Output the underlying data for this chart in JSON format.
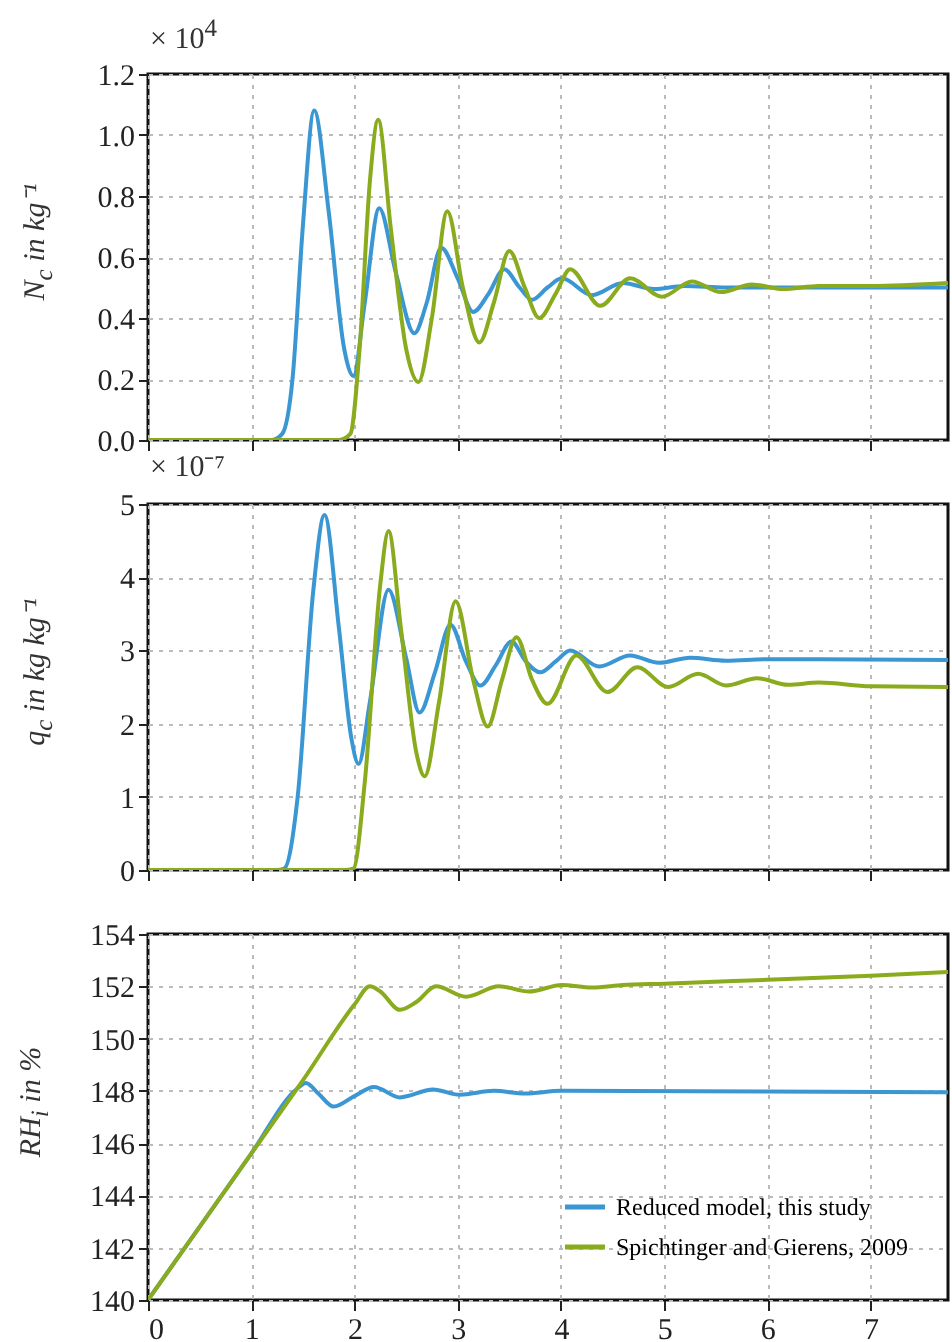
{
  "chart_data": [
    {
      "type": "line",
      "ylabel": "N$_{c}$ in kg⁻¹",
      "annotations": [
        "× 10$^{4}$"
      ],
      "xlim": [
        0,
        7.75
      ],
      "xticks": [
        0,
        1,
        2,
        3,
        4,
        5,
        6,
        7
      ],
      "ylim": [
        0,
        1.2
      ],
      "yticks": [
        {
          "value": 0,
          "label": "0.0"
        },
        0.2,
        0.4,
        0.6,
        0.8,
        {
          "value": 1,
          "label": "1.0"
        },
        1.2
      ],
      "grid": true,
      "legend": false,
      "tick_labels": "y",
      "series": [
        {
          "color": "#3a97d4",
          "x": [
            0,
            1.2,
            1.3,
            1.4,
            1.5,
            1.61,
            1.75,
            1.9,
            1.99,
            2.1,
            2.24,
            2.4,
            2.58,
            2.7,
            2.84,
            3.0,
            3.15,
            3.3,
            3.45,
            3.6,
            3.72,
            3.87,
            4.01,
            4.3,
            4.6,
            4.9,
            5.2,
            5.6,
            7.75
          ],
          "values": [
            0,
            0,
            0.02,
            0.2,
            0.7,
            1.08,
            0.75,
            0.3,
            0.21,
            0.45,
            0.76,
            0.55,
            0.35,
            0.45,
            0.63,
            0.53,
            0.42,
            0.48,
            0.56,
            0.5,
            0.46,
            0.5,
            0.53,
            0.475,
            0.515,
            0.495,
            0.505,
            0.5,
            0.5
          ]
        },
        {
          "color": "#8aab1d",
          "x": [
            0,
            1.85,
            1.96,
            2.05,
            2.15,
            2.23,
            2.35,
            2.5,
            2.62,
            2.75,
            2.9,
            3.05,
            3.21,
            3.35,
            3.5,
            3.65,
            3.79,
            3.95,
            4.09,
            4.38,
            4.67,
            4.98,
            5.27,
            5.55,
            5.85,
            6.15,
            6.5,
            7.0,
            7.75
          ],
          "values": [
            0,
            0,
            0.02,
            0.3,
            0.85,
            1.05,
            0.7,
            0.3,
            0.19,
            0.4,
            0.75,
            0.5,
            0.32,
            0.45,
            0.62,
            0.5,
            0.4,
            0.48,
            0.56,
            0.44,
            0.53,
            0.47,
            0.52,
            0.485,
            0.51,
            0.495,
            0.505,
            0.505,
            0.515
          ]
        }
      ]
    },
    {
      "type": "line",
      "ylabel": "q$_{c}$ in kg kg⁻¹",
      "annotations": [
        "× 10⁻⁷"
      ],
      "xlim": [
        0,
        7.75
      ],
      "xticks": [
        0,
        1,
        2,
        3,
        4,
        5,
        6,
        7
      ],
      "ylim": [
        0,
        5
      ],
      "yticks": [
        0,
        1,
        2,
        3,
        4,
        5
      ],
      "grid": true,
      "legend": false,
      "tick_labels": "y",
      "series": [
        {
          "color": "#3a97d4",
          "x": [
            0,
            1.25,
            1.32,
            1.45,
            1.6,
            1.71,
            1.85,
            1.97,
            2.04,
            2.15,
            2.33,
            2.5,
            2.63,
            2.78,
            2.93,
            3.08,
            3.22,
            3.37,
            3.52,
            3.66,
            3.8,
            3.95,
            4.09,
            4.37,
            4.67,
            4.95,
            5.25,
            5.6,
            6,
            7.75
          ],
          "values": [
            0,
            0,
            0.02,
            1.0,
            3.8,
            4.85,
            3.3,
            1.8,
            1.45,
            2.3,
            3.83,
            2.9,
            2.15,
            2.7,
            3.35,
            2.85,
            2.52,
            2.8,
            3.12,
            2.85,
            2.7,
            2.85,
            3.0,
            2.78,
            2.93,
            2.83,
            2.9,
            2.86,
            2.88,
            2.87
          ]
        },
        {
          "color": "#8aab1d",
          "x": [
            0,
            1.9,
            1.99,
            2.1,
            2.25,
            2.33,
            2.45,
            2.6,
            2.68,
            2.82,
            2.98,
            3.15,
            3.29,
            3.43,
            3.57,
            3.72,
            3.87,
            4.15,
            4.45,
            4.74,
            5.04,
            5.33,
            5.6,
            5.9,
            6.2,
            6.5,
            7.0,
            7.75
          ],
          "values": [
            0,
            0,
            0.02,
            1.2,
            3.9,
            4.63,
            3.3,
            1.6,
            1.28,
            2.3,
            3.67,
            2.6,
            1.96,
            2.6,
            3.18,
            2.6,
            2.27,
            2.93,
            2.43,
            2.77,
            2.5,
            2.68,
            2.52,
            2.62,
            2.53,
            2.56,
            2.51,
            2.5
          ]
        }
      ]
    },
    {
      "type": "line",
      "ylabel": "RH$_{i}$ in %",
      "xlim": [
        0,
        7.75
      ],
      "xticks": [
        0,
        1,
        2,
        3,
        4,
        5,
        6,
        7
      ],
      "ylim": [
        140,
        154
      ],
      "yticks": [
        140,
        142,
        144,
        146,
        148,
        150,
        152,
        154
      ],
      "grid": true,
      "legend": "bottom right",
      "series": [
        {
          "name": "Reduced model, this study",
          "color": "#3a97d4",
          "x": [
            0,
            1,
            1.45,
            1.53,
            1.65,
            1.8,
            2.0,
            2.19,
            2.44,
            2.76,
            3.02,
            3.35,
            3.65,
            4.0,
            7.75
          ],
          "values": [
            140,
            145.6,
            148.1,
            148.3,
            147.9,
            147.4,
            147.8,
            148.15,
            147.75,
            148.05,
            147.85,
            148.0,
            147.9,
            148.0,
            147.95
          ]
        },
        {
          "name": "Spichtinger and Gierens, 2009",
          "color": "#8aab1d",
          "x": [
            0,
            1,
            1.5,
            2.0,
            2.15,
            2.25,
            2.44,
            2.6,
            2.79,
            3.08,
            3.4,
            3.69,
            4.01,
            4.3,
            4.6,
            5.0,
            6.0,
            7.0,
            7.75
          ],
          "values": [
            140,
            145.6,
            148.4,
            151.3,
            152.0,
            151.8,
            151.1,
            151.4,
            152.0,
            151.6,
            152.0,
            151.8,
            152.05,
            151.95,
            152.05,
            152.1,
            152.25,
            152.4,
            152.55
          ]
        }
      ]
    }
  ]
}
